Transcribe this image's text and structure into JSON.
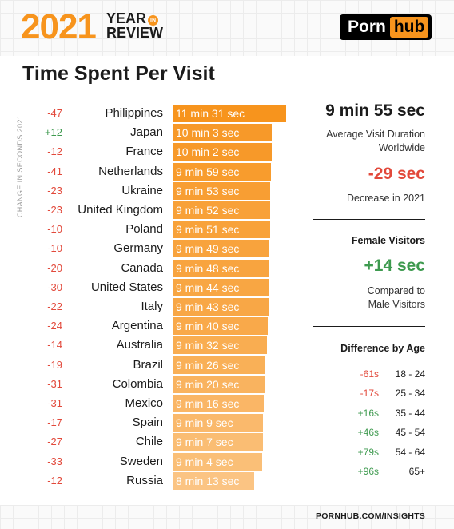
{
  "header": {
    "year": "2021",
    "year_in_line": "YEAR",
    "in_badge": "IN",
    "review_line": "REVIEW",
    "logo_part1": "Porn",
    "logo_part2": "hub"
  },
  "colors": {
    "accent": "#f7941d",
    "negative": "#e2493b",
    "positive": "#3e9a4f"
  },
  "chart_data": {
    "type": "bar",
    "orientation": "horizontal",
    "title": "Time Spent Per Visit",
    "side_label": "CHANGE IN SECONDS 2021",
    "value_unit": "seconds",
    "categories": [
      "Philippines",
      "Japan",
      "France",
      "Netherlands",
      "Ukraine",
      "United Kingdom",
      "Poland",
      "Germany",
      "Canada",
      "United States",
      "Italy",
      "Argentina",
      "Australia",
      "Brazil",
      "Colombia",
      "Mexico",
      "Spain",
      "Chile",
      "Sweden",
      "Russia"
    ],
    "values": [
      691,
      603,
      602,
      599,
      593,
      592,
      591,
      589,
      588,
      584,
      583,
      580,
      572,
      566,
      560,
      556,
      549,
      547,
      544,
      493
    ],
    "value_labels": [
      "11 min 31 sec",
      "10 min 3 sec",
      "10 min 2 sec",
      "9 min 59 sec",
      "9 min 53 sec",
      "9 min 52 sec",
      "9 min 51 sec",
      "9 min 49 sec",
      "9 min 48 sec",
      "9 min 44 sec",
      "9 min 43 sec",
      "9 min 40 sec",
      "9 min 32 sec",
      "9 min 26 sec",
      "9 min 20 sec",
      "9 min 16 sec",
      "9 min 9 sec",
      "9 min 7 sec",
      "9 min 4 sec",
      "8 min 13 sec"
    ],
    "changes": [
      "-47",
      "+12",
      "-12",
      "-41",
      "-23",
      "-23",
      "-10",
      "-10",
      "-20",
      "-30",
      "-22",
      "-24",
      "-14",
      "-19",
      "-31",
      "-31",
      "-17",
      "-27",
      "-33",
      "-12"
    ],
    "bar_opacity": [
      1,
      0.95,
      0.95,
      0.93,
      0.9,
      0.88,
      0.87,
      0.86,
      0.85,
      0.83,
      0.82,
      0.8,
      0.77,
      0.74,
      0.71,
      0.68,
      0.65,
      0.62,
      0.6,
      0.55
    ],
    "xlim": [
      0,
      691
    ]
  },
  "summary": {
    "avg_value": "9 min 55 sec",
    "avg_caption_1": "Average Visit Duration",
    "avg_caption_2": "Worldwide",
    "change_value": "-29 sec",
    "change_caption": "Decrease in 2021",
    "female_heading": "Female Visitors",
    "female_value": "+14 sec",
    "female_caption_1": "Compared to",
    "female_caption_2": "Male Visitors",
    "age_heading": "Difference by Age",
    "age_rows": [
      {
        "diff": "-61s",
        "range": "18 - 24"
      },
      {
        "diff": "-17s",
        "range": "25 - 34"
      },
      {
        "diff": "+16s",
        "range": "35 - 44"
      },
      {
        "diff": "+46s",
        "range": "45 - 54"
      },
      {
        "diff": "+79s",
        "range": "54 - 64"
      },
      {
        "diff": "+96s",
        "range": "65+"
      }
    ]
  },
  "footer": {
    "url": "PORNHUB.COM/INSIGHTS"
  }
}
